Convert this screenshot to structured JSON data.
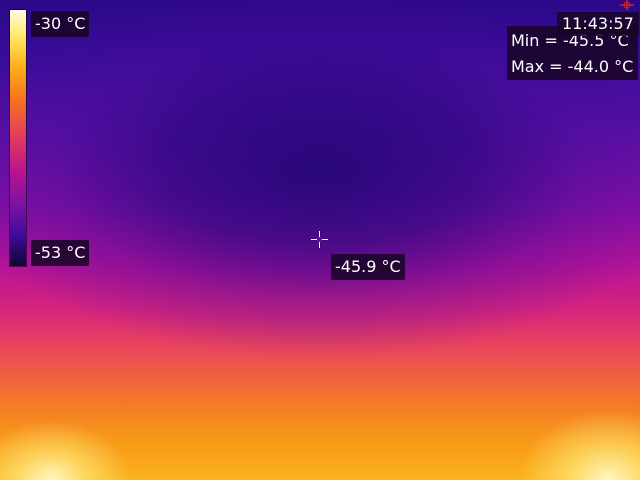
{
  "scale": {
    "max_label": "-30 °C",
    "min_label": "-53 °C"
  },
  "spot": {
    "temperature": "-45.9 °C"
  },
  "clock": {
    "time": "11:43:57"
  },
  "stats": {
    "min": "Min = -45.5 °C",
    "max": "Max = -44.0 °C"
  },
  "icons": {
    "crosshair": "crosshair-icon",
    "corner": "target-icon"
  },
  "colors": {
    "palette": [
      "#120433",
      "#3e0c99",
      "#7c12a4",
      "#b7148f",
      "#e23a5f",
      "#f5721f",
      "#fcb11a",
      "#ffe96a",
      "#fffbe8"
    ],
    "label_bg": "#190528"
  }
}
